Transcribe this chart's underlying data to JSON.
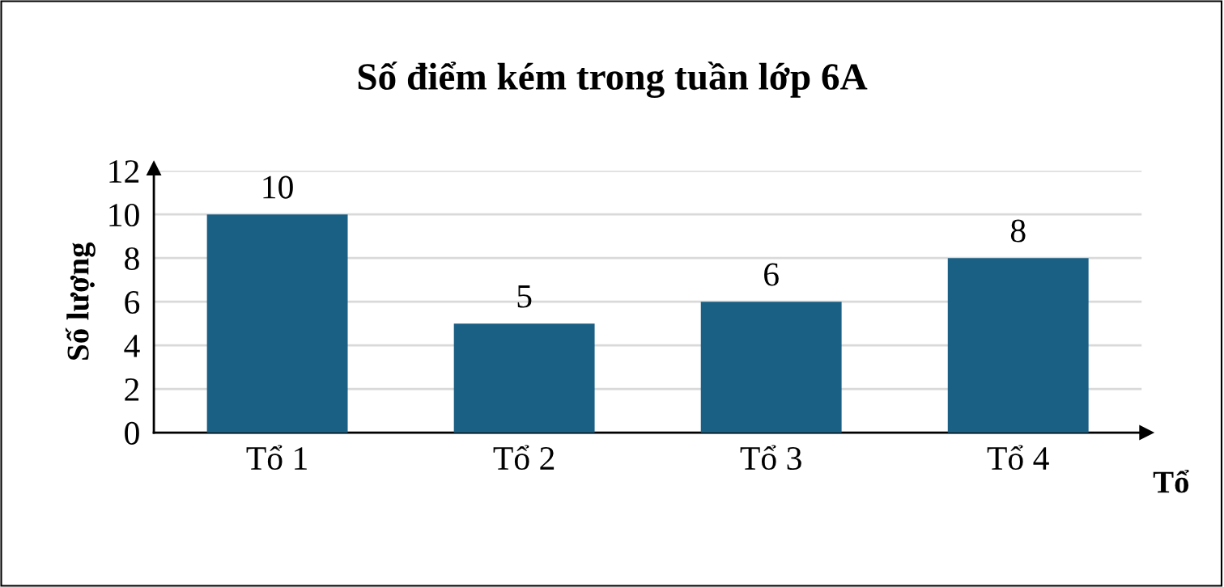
{
  "chart_data": {
    "type": "bar",
    "title": "Số điểm kém trong tuần lớp 6A",
    "xlabel": "Tổ",
    "ylabel": "Số lượng",
    "categories": [
      "Tổ 1",
      "Tổ 2",
      "Tổ 3",
      "Tổ 4"
    ],
    "values": [
      10,
      5,
      6,
      8
    ],
    "color": "#1a5f84",
    "ylim": [
      0,
      12
    ],
    "yticks": [
      0,
      2,
      4,
      6,
      8,
      10,
      12
    ],
    "grid": "y",
    "data_labels": true
  }
}
